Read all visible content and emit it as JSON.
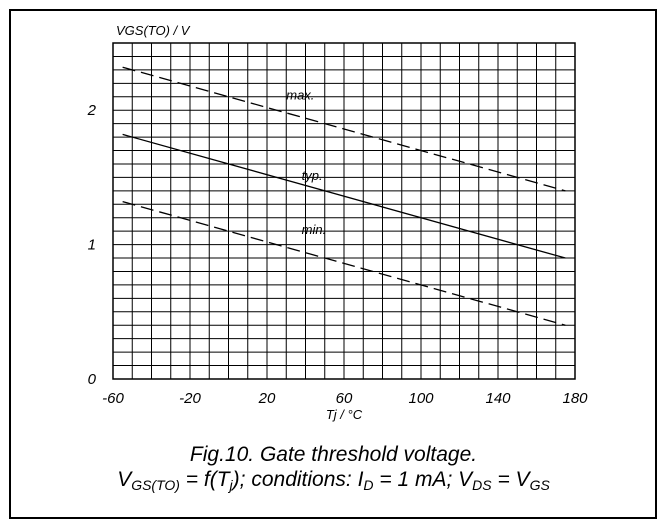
{
  "chart_data": {
    "type": "line",
    "xlabel_main": "Tj / ",
    "xlabel_unit": "°C",
    "ylabel": "VGS(TO) / V",
    "xlim": [
      -60,
      180
    ],
    "ylim": [
      0,
      2.5
    ],
    "x_ticks": [
      -60,
      -20,
      20,
      60,
      100,
      140,
      180
    ],
    "y_ticks": [
      0,
      1,
      2
    ],
    "x_grid_step": 10,
    "y_grid_step": 0.1,
    "grid": true,
    "series": [
      {
        "name": "max.",
        "style": "dashed",
        "x": [
          -55,
          175
        ],
        "y": [
          2.32,
          1.4
        ],
        "label_x": 30,
        "label_y": 2.08
      },
      {
        "name": "typ.",
        "style": "solid",
        "x": [
          -55,
          175
        ],
        "y": [
          1.82,
          0.9
        ],
        "label_x": 38,
        "label_y": 1.48
      },
      {
        "name": "min.",
        "style": "dashed",
        "x": [
          -55,
          175
        ],
        "y": [
          1.32,
          0.4
        ],
        "label_x": 38,
        "label_y": 1.08
      }
    ]
  },
  "caption": {
    "line1": "Fig.10.   Gate threshold voltage.",
    "l2_p1": "V",
    "l2_s1": "GS(TO)",
    "l2_p2": " = f(T",
    "l2_s2": "j",
    "l2_p3": "); conditions: I",
    "l2_s3": "D",
    "l2_p4": " = 1 mA; V",
    "l2_s4": "DS",
    "l2_p5": " = V",
    "l2_s5": "GS"
  }
}
